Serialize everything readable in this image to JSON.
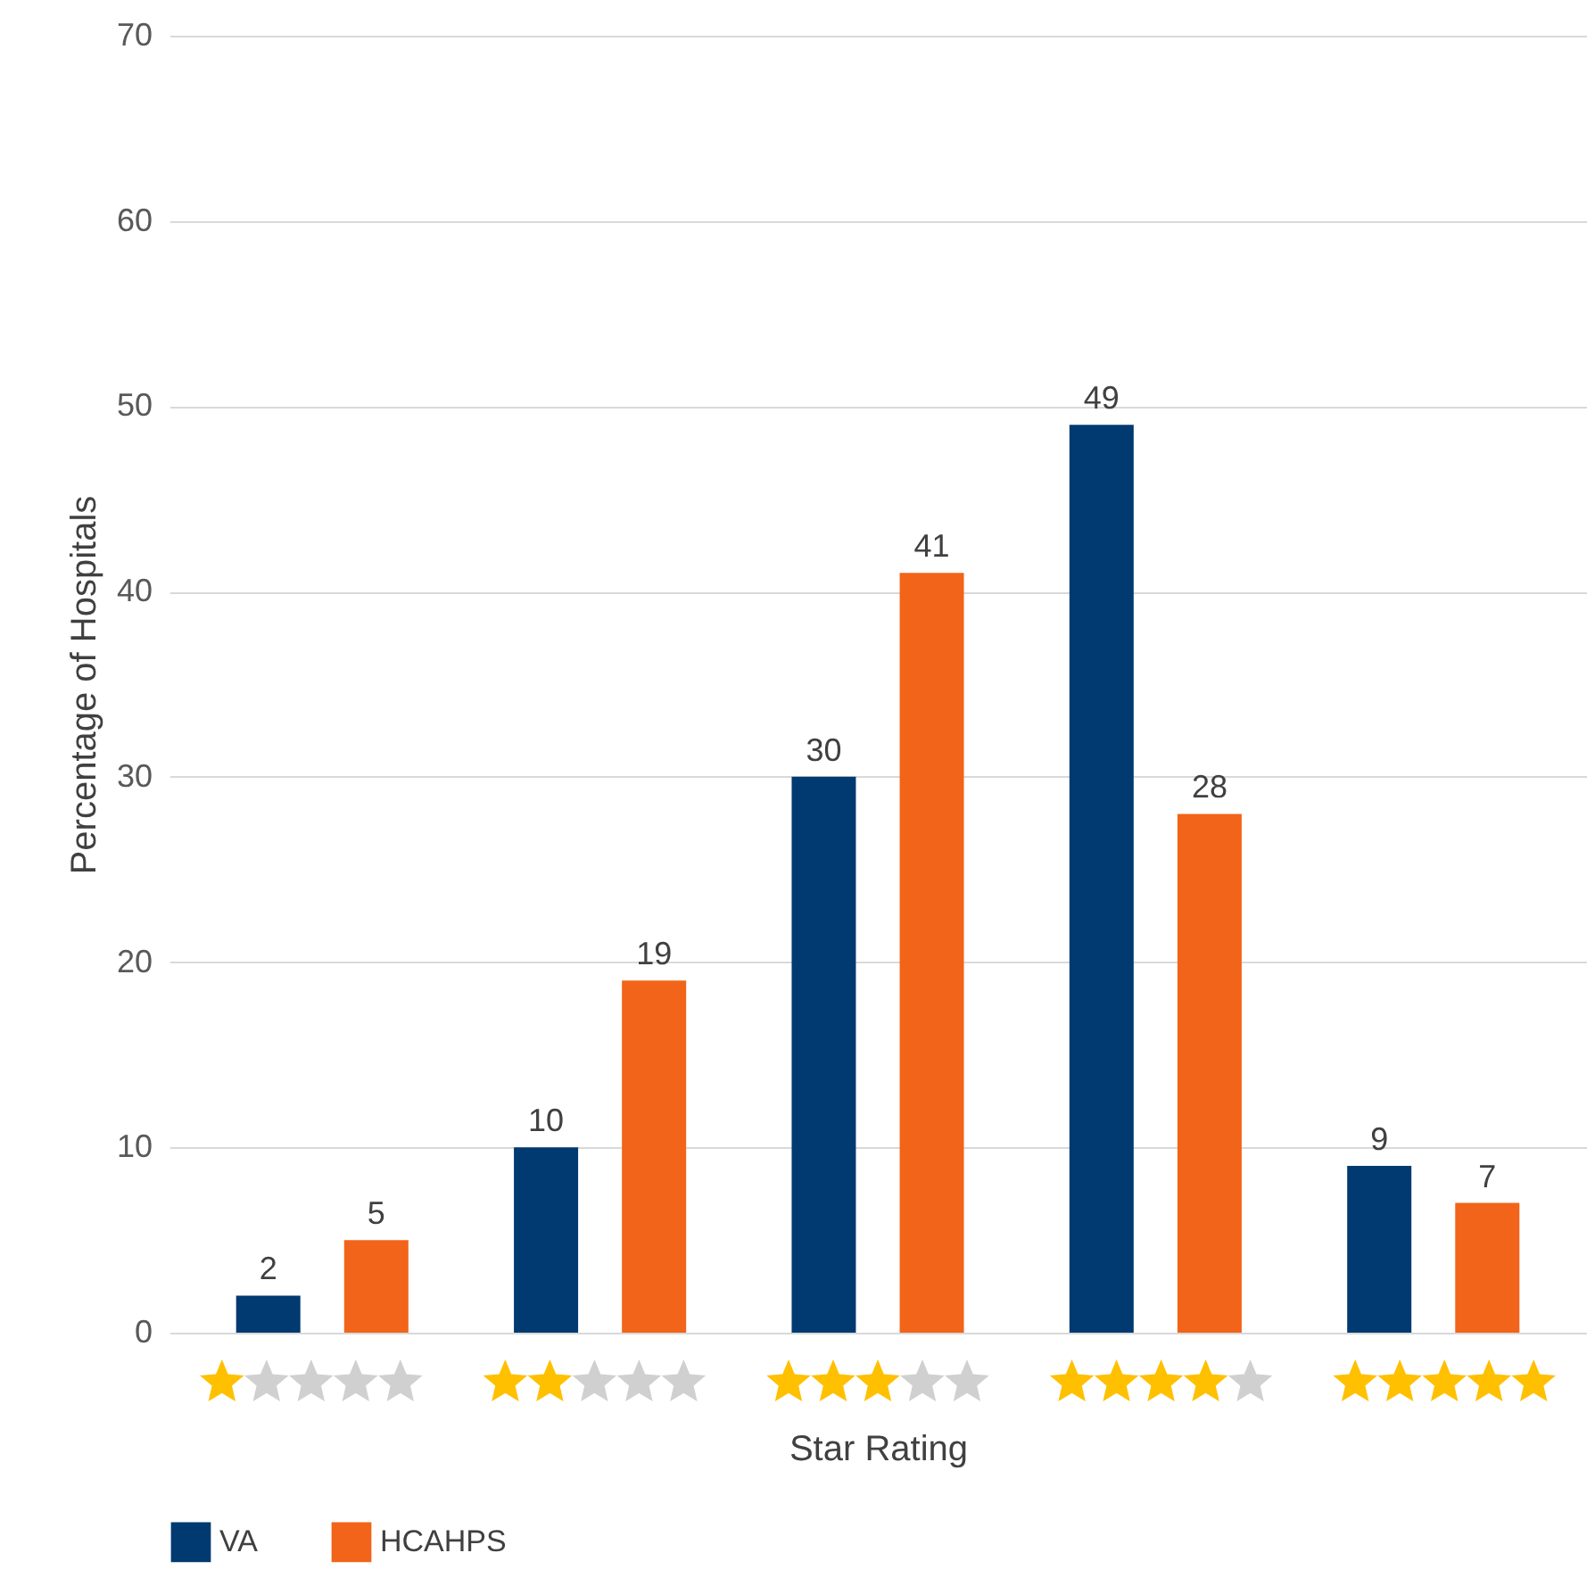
{
  "chart_data": {
    "type": "bar",
    "xlabel": "Star Rating",
    "ylabel": "Percentage of Hospitals",
    "categories": [
      null,
      null,
      null,
      null,
      null
    ],
    "series": [
      {
        "name": "VA",
        "color": "#003a70",
        "values": [
          2,
          10,
          30,
          49,
          9
        ]
      },
      {
        "name": "HCAHPS",
        "color": "#f26419",
        "values": [
          5,
          19,
          41,
          28,
          7
        ]
      }
    ],
    "ylim": [
      0,
      70
    ],
    "yticks": [
      0,
      10,
      20,
      30,
      40,
      50,
      60,
      70
    ],
    "grid": "y",
    "legend": "bottom",
    "data_labels": true
  }
}
